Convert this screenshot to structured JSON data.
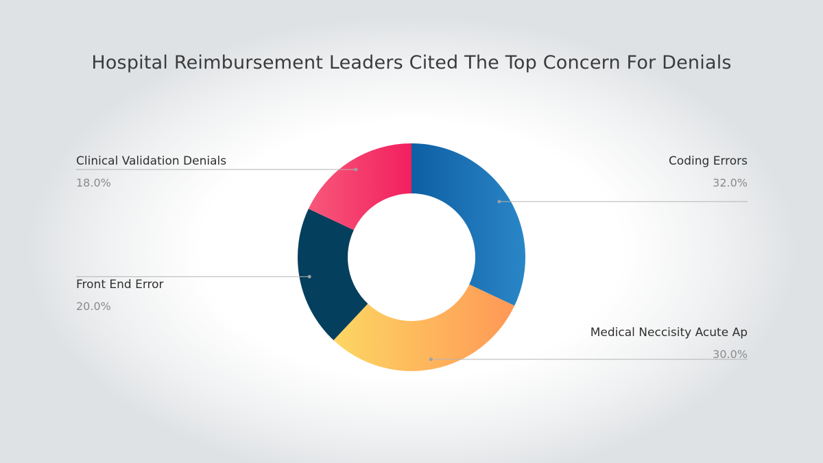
{
  "title": "Hospital Reimbursement Leaders Cited The Top Concern For Denials",
  "chart_data": {
    "type": "pie",
    "donut": true,
    "title": "Hospital Reimbursement Leaders Cited The Top Concern For Denials",
    "categories": [
      "Coding Errors",
      "Medical Neccisity Acute Ap",
      "Front End Error",
      "Clinical Validation Denials"
    ],
    "values": [
      32.0,
      30.0,
      20.0,
      18.0
    ],
    "value_labels": [
      "32.0%",
      "30.0%",
      "20.0%",
      "18.0%"
    ],
    "start_angle": "top",
    "direction": "clockwise",
    "colors": [
      [
        "#0e5fa3",
        "#2a86c7"
      ],
      [
        "#fdd663",
        "#fe9856"
      ],
      [
        "#053f5e",
        "#053f5e"
      ],
      [
        "#f7587a",
        "#f2205f"
      ]
    ],
    "leader_line_color": "#b3b3b3"
  }
}
